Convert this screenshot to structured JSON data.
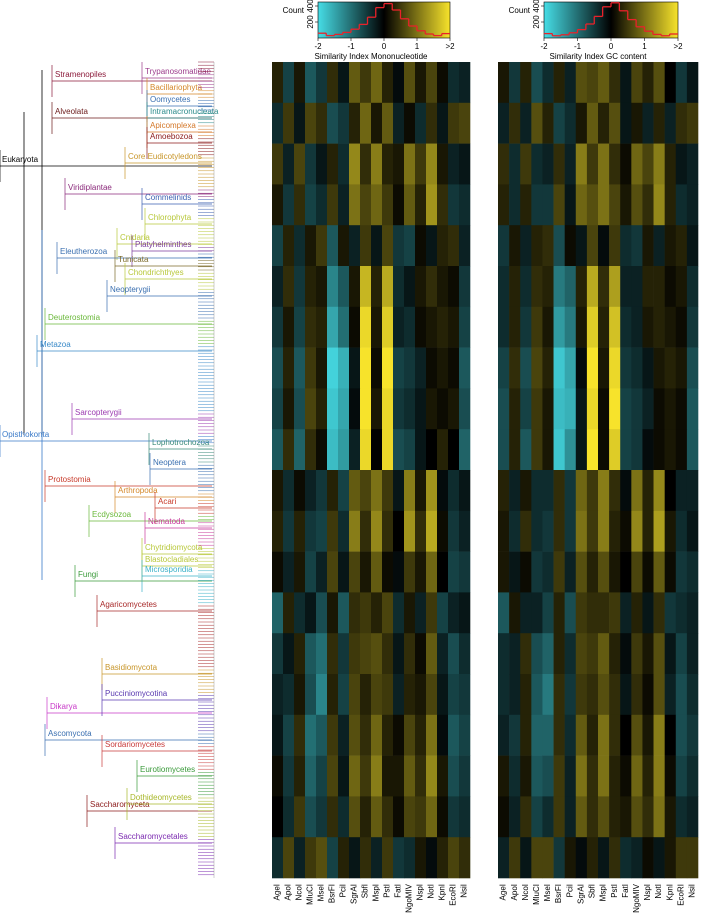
{
  "chart_data": [
    {
      "type": "heatmap",
      "categories": [
        "AgeI",
        "ApoI",
        "NcoI",
        "MluCI",
        "MseI",
        "BsrFI",
        "PciI",
        "SgrAI",
        "SbfI",
        "MspI",
        "PstI",
        "FatI",
        "NgoMIV",
        "NspI",
        "NotI",
        "KpnI",
        "EcoRI",
        "NsiI"
      ],
      "zlim": [
        -2,
        2
      ],
      "colors": [
        "#46dde6",
        "#000000",
        "#f7e32b"
      ],
      "values": [
        [
          0.3,
          -0.6,
          0.2,
          -0.8,
          -0.5,
          0.4,
          -0.2,
          0.8,
          0.5,
          0.9,
          0.3,
          -0.1,
          0.7,
          0.2,
          0.6,
          0.1,
          -0.4,
          -0.3
        ],
        [
          -0.4,
          0.5,
          -0.2,
          0.6,
          0.4,
          -0.7,
          -0.5,
          0.3,
          0.9,
          0.2,
          0.8,
          -0.3,
          0.1,
          -0.4,
          0.4,
          -0.2,
          0.5,
          0.6
        ],
        [
          0.5,
          -0.3,
          0.6,
          -0.5,
          -0.2,
          0.3,
          -0.4,
          1.2,
          0.4,
          1.1,
          0.3,
          0.2,
          1.0,
          0.5,
          1.2,
          0.2,
          -0.3,
          -0.2
        ],
        [
          0.2,
          -0.5,
          0.4,
          -0.6,
          -0.4,
          0.5,
          -0.3,
          1.0,
          0.6,
          0.9,
          0.5,
          0.1,
          0.8,
          0.3,
          1.3,
          0.4,
          -0.5,
          -0.4
        ],
        [
          -0.6,
          0.3,
          -0.4,
          0.2,
          0.5,
          -0.8,
          0.2,
          -0.3,
          0.5,
          -0.2,
          0.6,
          -0.5,
          -0.6,
          0.1,
          -0.2,
          0.3,
          0.4,
          -0.3
        ],
        [
          -0.3,
          0.4,
          -0.5,
          0.3,
          0.2,
          -1.2,
          -0.8,
          0.2,
          1.6,
          0.3,
          1.5,
          -0.4,
          -0.2,
          0.2,
          0.4,
          0.2,
          0.1,
          -0.5
        ],
        [
          -0.5,
          0.2,
          -0.6,
          0.4,
          0.3,
          -1.5,
          -1.0,
          0.1,
          1.9,
          0.2,
          1.8,
          -0.3,
          -0.4,
          0.1,
          0.2,
          0.3,
          0.2,
          -0.6
        ],
        [
          -0.7,
          0.3,
          -0.8,
          0.5,
          0.2,
          -1.9,
          -1.6,
          -0.2,
          2.0,
          0.1,
          2.0,
          -0.6,
          -0.5,
          -0.3,
          0.1,
          0.2,
          0.1,
          -0.8
        ],
        [
          -0.6,
          0.2,
          -0.7,
          0.6,
          0.3,
          -1.8,
          -1.5,
          -0.1,
          2.0,
          0.2,
          1.9,
          -0.5,
          -0.4,
          -0.2,
          0.2,
          0.1,
          0.2,
          -0.7
        ],
        [
          -0.8,
          0.4,
          -0.9,
          0.4,
          0.1,
          -1.7,
          -1.4,
          -0.3,
          1.9,
          0.0,
          1.9,
          -0.7,
          -0.6,
          -0.2,
          0.0,
          0.3,
          0.0,
          -0.9
        ],
        [
          0.2,
          -0.4,
          0.1,
          -0.3,
          -0.5,
          0.3,
          -0.6,
          0.8,
          0.6,
          1.0,
          0.5,
          -0.2,
          1.1,
          0.2,
          1.3,
          -0.1,
          -0.4,
          -0.2
        ],
        [
          0.3,
          -0.5,
          0.3,
          -0.5,
          -0.6,
          0.5,
          -0.4,
          1.1,
          0.4,
          1.2,
          0.4,
          0.0,
          1.3,
          0.4,
          1.5,
          0.1,
          -0.5,
          -0.3
        ],
        [
          0.1,
          -0.3,
          0.2,
          -0.6,
          -0.3,
          0.6,
          -0.2,
          0.6,
          0.2,
          0.8,
          0.1,
          -0.1,
          0.5,
          0.2,
          0.9,
          0.0,
          -0.6,
          -0.5
        ],
        [
          -0.9,
          0.3,
          -0.4,
          -0.2,
          -0.7,
          0.2,
          -0.8,
          0.4,
          0.5,
          0.3,
          0.6,
          -0.4,
          0.2,
          -0.3,
          0.5,
          -0.6,
          -0.3,
          -0.2
        ],
        [
          -0.5,
          -0.2,
          0.3,
          -0.8,
          -1.0,
          0.4,
          -0.5,
          0.5,
          0.6,
          0.7,
          0.4,
          -0.2,
          0.4,
          0.1,
          0.8,
          -0.3,
          -0.7,
          -0.4
        ],
        [
          -0.3,
          -0.4,
          0.2,
          -0.7,
          -1.2,
          0.3,
          -0.6,
          0.6,
          0.3,
          0.6,
          0.5,
          -0.3,
          0.3,
          0.2,
          0.6,
          -0.2,
          -0.6,
          -0.5
        ],
        [
          -0.2,
          -0.6,
          0.4,
          -1.0,
          -0.8,
          0.5,
          -0.3,
          0.7,
          0.4,
          0.9,
          0.3,
          0.1,
          0.6,
          0.3,
          1.0,
          -0.1,
          -0.8,
          -0.6
        ],
        [
          0.1,
          -0.5,
          0.3,
          -0.9,
          -0.6,
          0.6,
          -0.2,
          0.9,
          0.5,
          1.1,
          0.2,
          0.2,
          0.8,
          0.4,
          1.2,
          0.2,
          -0.7,
          -0.5
        ],
        [
          0.0,
          -0.4,
          0.5,
          -0.7,
          -0.5,
          0.4,
          -0.4,
          0.7,
          0.3,
          0.8,
          0.4,
          0.1,
          0.6,
          0.5,
          0.9,
          0.1,
          -0.5,
          -0.4
        ],
        [
          -0.4,
          0.6,
          -0.3,
          0.5,
          0.7,
          -0.6,
          0.3,
          -0.2,
          0.4,
          -0.3,
          0.5,
          -0.5,
          -0.4,
          0.2,
          -0.1,
          0.3,
          0.6,
          0.4
        ]
      ]
    },
    {
      "type": "heatmap",
      "categories": [
        "AgeI",
        "ApoI",
        "NcoI",
        "MluCI",
        "MseI",
        "BsrFI",
        "PciI",
        "SgrAI",
        "SbfI",
        "MspI",
        "PstI",
        "FatI",
        "NgoMIV",
        "NspI",
        "NotI",
        "KpnI",
        "EcoRI",
        "NsiI"
      ],
      "zlim": [
        -2,
        2
      ],
      "colors": [
        "#46dde6",
        "#000000",
        "#f7e32b"
      ],
      "values": [
        [
          0.2,
          -0.5,
          0.3,
          -0.7,
          -0.4,
          0.3,
          -0.3,
          0.7,
          0.6,
          0.8,
          0.4,
          -0.2,
          0.6,
          0.3,
          0.7,
          0.0,
          -0.5,
          -0.2
        ],
        [
          -0.3,
          0.4,
          -0.3,
          0.7,
          0.3,
          -0.6,
          -0.4,
          0.2,
          0.8,
          0.3,
          0.7,
          -0.2,
          0.2,
          -0.3,
          0.3,
          -0.3,
          0.4,
          0.5
        ],
        [
          0.4,
          -0.4,
          0.5,
          -0.4,
          -0.3,
          0.4,
          -0.3,
          1.1,
          0.5,
          1.0,
          0.4,
          0.1,
          0.9,
          0.6,
          1.1,
          0.3,
          -0.2,
          -0.3
        ],
        [
          0.3,
          -0.4,
          0.3,
          -0.5,
          -0.5,
          0.6,
          -0.2,
          0.9,
          0.7,
          1.0,
          0.6,
          0.2,
          0.7,
          0.4,
          1.2,
          0.3,
          -0.4,
          -0.3
        ],
        [
          -0.5,
          0.2,
          -0.3,
          0.3,
          0.4,
          -0.7,
          0.1,
          -0.2,
          0.6,
          -0.1,
          0.5,
          -0.4,
          -0.5,
          0.2,
          -0.3,
          0.2,
          0.3,
          -0.2
        ],
        [
          -0.4,
          0.3,
          -0.4,
          0.4,
          0.3,
          -1.1,
          -0.9,
          0.3,
          1.5,
          0.4,
          1.4,
          -0.3,
          -0.3,
          0.3,
          0.3,
          0.1,
          0.2,
          -0.4
        ],
        [
          -0.4,
          0.3,
          -0.5,
          0.5,
          0.2,
          -1.4,
          -1.1,
          0.2,
          1.8,
          0.3,
          1.7,
          -0.4,
          -0.3,
          0.2,
          0.3,
          0.2,
          0.1,
          -0.5
        ],
        [
          -0.6,
          0.4,
          -0.7,
          0.6,
          0.3,
          -1.8,
          -1.5,
          -0.1,
          2.0,
          0.2,
          1.9,
          -0.5,
          -0.4,
          -0.2,
          0.2,
          0.3,
          0.2,
          -0.7
        ],
        [
          -0.7,
          0.3,
          -0.6,
          0.5,
          0.2,
          -1.7,
          -1.6,
          -0.2,
          1.9,
          0.1,
          2.0,
          -0.6,
          -0.5,
          -0.3,
          0.1,
          0.2,
          0.1,
          -0.8
        ],
        [
          -0.7,
          0.3,
          -0.8,
          0.5,
          0.2,
          -1.8,
          -1.3,
          -0.2,
          2.0,
          0.1,
          1.8,
          -0.6,
          -0.5,
          -0.1,
          0.1,
          0.2,
          0.1,
          -0.8
        ],
        [
          0.3,
          -0.3,
          0.2,
          -0.4,
          -0.4,
          0.4,
          -0.5,
          0.9,
          0.5,
          1.1,
          0.4,
          -0.1,
          1.0,
          0.3,
          1.2,
          0.0,
          -0.3,
          -0.3
        ],
        [
          0.2,
          -0.4,
          0.4,
          -0.4,
          -0.5,
          0.4,
          -0.5,
          1.0,
          0.5,
          1.1,
          0.3,
          0.1,
          1.2,
          0.3,
          1.4,
          0.2,
          -0.4,
          -0.2
        ],
        [
          0.2,
          -0.2,
          0.1,
          -0.5,
          -0.4,
          0.5,
          -0.3,
          0.7,
          0.3,
          0.7,
          0.2,
          0.0,
          0.6,
          0.1,
          0.8,
          0.1,
          -0.5,
          -0.4
        ],
        [
          -0.8,
          0.2,
          -0.3,
          -0.3,
          -0.6,
          0.3,
          -0.7,
          0.5,
          0.4,
          0.4,
          0.5,
          -0.3,
          0.3,
          -0.2,
          0.4,
          -0.5,
          -0.4,
          -0.3
        ],
        [
          -0.4,
          -0.3,
          0.4,
          -0.7,
          -0.9,
          0.3,
          -0.4,
          0.6,
          0.5,
          0.8,
          0.3,
          -0.1,
          0.5,
          0.2,
          0.7,
          -0.2,
          -0.6,
          -0.3
        ],
        [
          -0.4,
          -0.3,
          0.3,
          -0.8,
          -1.1,
          0.4,
          -0.5,
          0.5,
          0.4,
          0.7,
          0.4,
          -0.2,
          0.4,
          0.1,
          0.7,
          -0.3,
          -0.7,
          -0.4
        ],
        [
          -0.3,
          -0.5,
          0.3,
          -0.9,
          -0.9,
          0.4,
          -0.4,
          0.8,
          0.3,
          1.0,
          0.4,
          0.0,
          0.7,
          0.2,
          1.1,
          0.0,
          -0.7,
          -0.5
        ],
        [
          0.2,
          -0.4,
          0.2,
          -0.8,
          -0.7,
          0.5,
          -0.3,
          1.0,
          0.4,
          1.0,
          0.3,
          0.1,
          0.9,
          0.3,
          1.1,
          0.1,
          -0.6,
          -0.4
        ],
        [
          0.1,
          -0.3,
          0.4,
          -0.6,
          -0.4,
          0.5,
          -0.3,
          0.8,
          0.4,
          0.7,
          0.3,
          0.2,
          0.7,
          0.4,
          1.0,
          0.2,
          -0.4,
          -0.3
        ],
        [
          -0.3,
          0.5,
          -0.2,
          0.6,
          0.6,
          -0.5,
          0.2,
          -0.1,
          0.3,
          -0.2,
          0.4,
          -0.4,
          -0.3,
          0.1,
          -0.2,
          0.2,
          0.5,
          0.5
        ]
      ]
    },
    {
      "type": "histogram",
      "xlabel": "Similarity Index Mononucleotide",
      "ylabel": "Count",
      "color": "#e8222a",
      "bins": [
        -2,
        -1.75,
        -1.5,
        -1.25,
        -1,
        -0.75,
        -0.5,
        -0.25,
        0,
        0.25,
        0.5,
        0.75,
        1,
        1.25,
        1.5,
        1.75,
        2
      ],
      "values": [
        60,
        30,
        45,
        70,
        110,
        170,
        260,
        380,
        430,
        350,
        240,
        150,
        90,
        50,
        30,
        55
      ],
      "xlim": [
        -2,
        2
      ],
      "xticks": [
        -2,
        -1,
        0,
        1,
        {
          "value": 2,
          "label": ">2"
        }
      ],
      "ylim": [
        0,
        450
      ],
      "yticks": [
        200,
        400
      ]
    },
    {
      "type": "histogram",
      "xlabel": "Similarity Index GC content",
      "ylabel": "Count",
      "color": "#e8222a",
      "bins": [
        -2,
        -1.75,
        -1.5,
        -1.25,
        -1,
        -0.75,
        -0.5,
        -0.25,
        0,
        0.25,
        0.5,
        0.75,
        1,
        1.25,
        1.5,
        1.75,
        2
      ],
      "values": [
        55,
        28,
        40,
        65,
        105,
        175,
        270,
        390,
        440,
        340,
        230,
        140,
        85,
        45,
        28,
        50
      ],
      "xlim": [
        -2,
        2
      ],
      "xticks": [
        -2,
        -1,
        0,
        1,
        {
          "value": 2,
          "label": ">2"
        }
      ],
      "ylim": [
        0,
        450
      ],
      "yticks": [
        200,
        400
      ]
    }
  ],
  "tree": {
    "clades": [
      {
        "label": "Stramenopiles",
        "color": "#8b1a3a"
      },
      {
        "label": "Trypanosomatidae",
        "color": "#9b3b8b"
      },
      {
        "label": "Bacillariophyta",
        "color": "#d4882a"
      },
      {
        "label": "Oomycetes",
        "color": "#3a6fb0"
      },
      {
        "label": "Alveolata",
        "color": "#6b1a1a"
      },
      {
        "label": "Intramacronucleata",
        "color": "#2a8a8a"
      },
      {
        "label": "Apicomplexa",
        "color": "#d4782a"
      },
      {
        "label": "Amoebozoa",
        "color": "#8b1a1a"
      },
      {
        "label": "Eukaryota",
        "color": "#000000"
      },
      {
        "label": "Core Eudicotyledons",
        "color": "#c8962a"
      },
      {
        "label": "Viridiplantae",
        "color": "#8b2a7b"
      },
      {
        "label": "Commelinids",
        "color": "#3a5fb0"
      },
      {
        "label": "Chlorophyta",
        "color": "#b8c83a"
      },
      {
        "label": "Cnidaria",
        "color": "#b8c83a"
      },
      {
        "label": "Platyhelminthes",
        "color": "#7b3a9b"
      },
      {
        "label": "Eleutherozoa",
        "color": "#3a6fb0"
      },
      {
        "label": "Tunicata",
        "color": "#7b6a2a"
      },
      {
        "label": "Chondrichthyes",
        "color": "#b8c83a"
      },
      {
        "label": "Neopterygii",
        "color": "#3a6fb0"
      },
      {
        "label": "Deuterostomia",
        "color": "#6ab83a"
      },
      {
        "label": "Metazoa",
        "color": "#3a8ac8"
      },
      {
        "label": "Sarcopterygii",
        "color": "#9b3ab0"
      },
      {
        "label": "Opisthokonta",
        "color": "#3a7ac8"
      },
      {
        "label": "Lophotrochozoa",
        "color": "#3a8a7a"
      },
      {
        "label": "Protostomia",
        "color": "#c83a2a"
      },
      {
        "label": "Neoptera",
        "color": "#3a6fb0"
      },
      {
        "label": "Arthropoda",
        "color": "#d4882a"
      },
      {
        "label": "Acari",
        "color": "#c83a2a"
      },
      {
        "label": "Ecdysozoa",
        "color": "#6ab83a"
      },
      {
        "label": "Nematoda",
        "color": "#c83a9b"
      },
      {
        "label": "Fungi",
        "color": "#3a9a3a"
      },
      {
        "label": "Chytridiomycota",
        "color": "#b8c83a"
      },
      {
        "label": "Blastocladiales",
        "color": "#b8c83a"
      },
      {
        "label": "Microsporidia",
        "color": "#3ab0c8"
      },
      {
        "label": "Agaricomycetes",
        "color": "#a82a2a"
      },
      {
        "label": "Basidiomycota",
        "color": "#c8962a"
      },
      {
        "label": "Dikarya",
        "color": "#c83ac8"
      },
      {
        "label": "Pucciniomycotina",
        "color": "#5a3ab0"
      },
      {
        "label": "Ascomycota",
        "color": "#3a6fb0"
      },
      {
        "label": "Sordariomycetes",
        "color": "#c83a3a"
      },
      {
        "label": "Saccharomyceta",
        "color": "#8b1a1a"
      },
      {
        "label": "Eurotiomycetes",
        "color": "#3a9a3a"
      },
      {
        "label": "Dothideomycetes",
        "color": "#a8b82a"
      },
      {
        "label": "Saccharomycetales",
        "color": "#7b2ab0"
      }
    ]
  }
}
